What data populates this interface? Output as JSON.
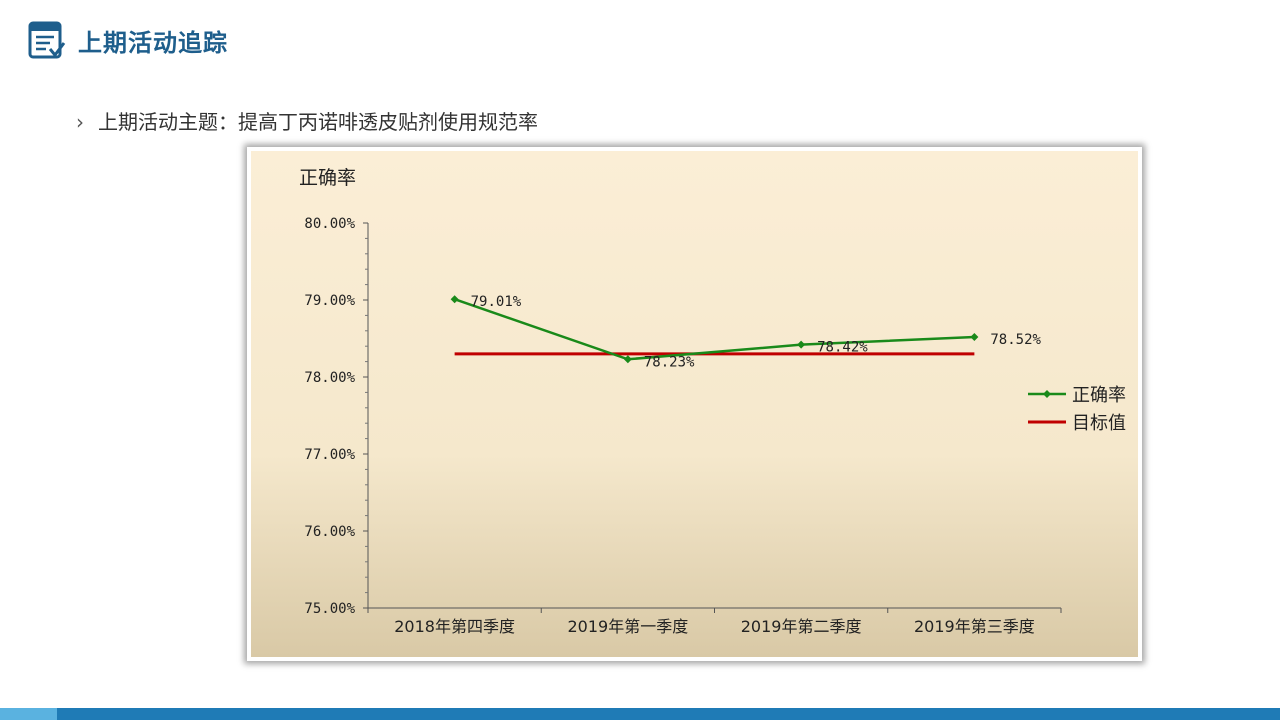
{
  "header": {
    "title": "上期活动追踪",
    "icon": "checklist-icon",
    "color": "#1e5e8c"
  },
  "bullet": {
    "arrow": "›",
    "text": "上期活动主题：提高丁丙诺啡透皮贴剂使用规范率"
  },
  "chart_data": {
    "type": "line",
    "ylabel": "正确率",
    "categories": [
      "2018年第四季度",
      "2019年第一季度",
      "2019年第二季度",
      "2019年第三季度"
    ],
    "series": [
      {
        "name": "正确率",
        "values": [
          79.01,
          78.23,
          78.42,
          78.52
        ],
        "labels": [
          "79.01%",
          "78.23%",
          "78.42%",
          "78.52%"
        ],
        "color": "#1a8a1a"
      },
      {
        "name": "目标值",
        "values": [
          78.3,
          78.3,
          78.3,
          78.3
        ],
        "color": "#c00000"
      }
    ],
    "ylim": [
      75,
      80
    ],
    "yticks": [
      "75.00%",
      "76.00%",
      "77.00%",
      "78.00%",
      "79.00%",
      "80.00%"
    ],
    "legend": "right",
    "grid": false
  },
  "footer": {
    "color": "#1f7bb6",
    "accent": "#5ab2e0"
  }
}
